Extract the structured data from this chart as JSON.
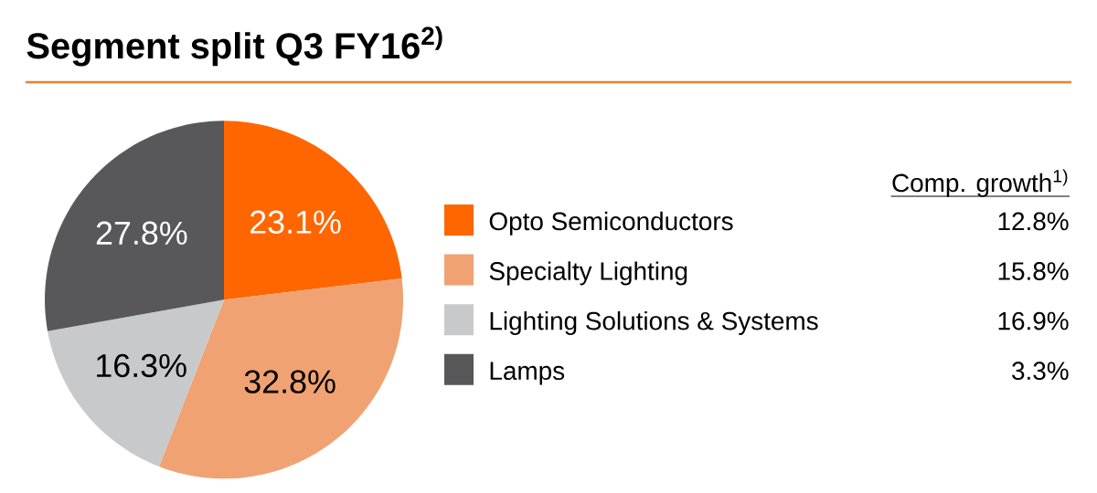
{
  "chart_data": {
    "type": "pie",
    "title": "Segment split Q3 FY16$^{2)}$",
    "categories": [
      "Opto Semiconductors",
      "Specialty Lighting",
      "Lighting Solutions & Systems",
      "Lamps"
    ],
    "values": [
      23.1,
      32.8,
      16.3,
      27.8
    ],
    "colors": [
      "#ff6600",
      "#f0a272",
      "#c8c9cb",
      "#58585a"
    ],
    "value_labels": [
      "23.1%",
      "32.8%",
      "16.3%",
      "27.8%"
    ],
    "legend": "right",
    "annotations": [
      "Comp. growth$^{1)}$",
      "12.8%",
      "15.8%",
      "16.9%",
      "3.3%"
    ]
  }
}
